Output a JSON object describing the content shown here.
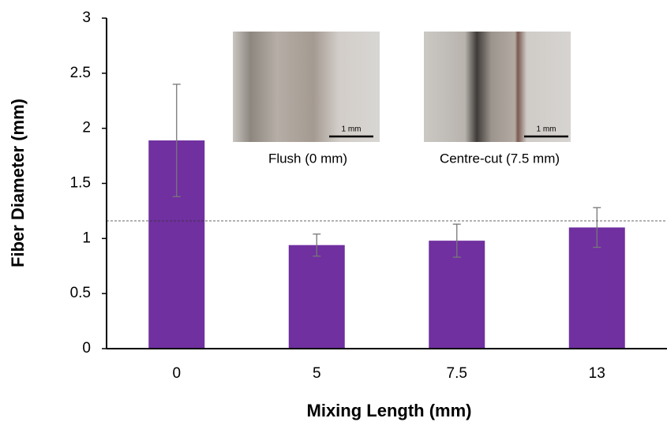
{
  "chart_data": {
    "type": "bar",
    "x_label": "Mixing Length (mm)",
    "y_label": "Fiber Diameter (mm)",
    "categories": [
      "0",
      "5",
      "7.5",
      "13"
    ],
    "values": [
      1.89,
      0.94,
      0.98,
      1.1
    ],
    "errors": [
      0.51,
      0.1,
      0.15,
      0.18
    ],
    "color": "#7030a0",
    "error_color": "#777777",
    "ylim": [
      0,
      3
    ],
    "yticks": [
      0,
      0.5,
      1,
      1.5,
      2,
      2.5,
      3
    ],
    "grid": false,
    "reference_line": 1.16,
    "insets": [
      {
        "caption": "Flush (0 mm)",
        "scale_label": "1 mm"
      },
      {
        "caption": "Centre-cut (7.5 mm)",
        "scale_label": "1 mm"
      }
    ]
  }
}
